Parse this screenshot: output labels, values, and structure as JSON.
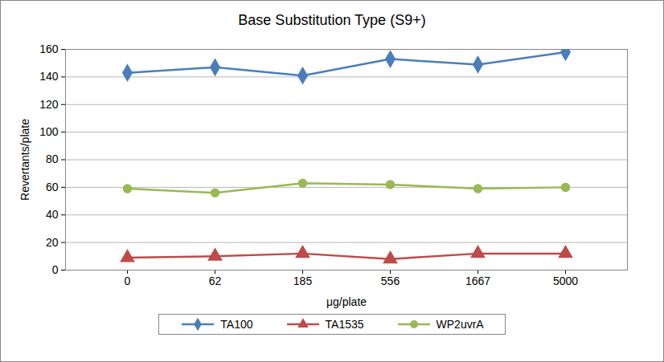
{
  "chart_data": {
    "type": "line",
    "title": "Base Substitution Type (S9+)",
    "x_label": "μg/plate",
    "y_label": "Revertants/plate",
    "categories": [
      "0",
      "62",
      "185",
      "556",
      "1667",
      "5000"
    ],
    "series": [
      {
        "name": "TA100",
        "color": "#4a7ebb",
        "marker": "diamond",
        "values": [
          143,
          147,
          141,
          153,
          149,
          158
        ]
      },
      {
        "name": "TA1535",
        "color": "#be4b48",
        "marker": "triangle",
        "values": [
          9,
          10,
          12,
          8,
          12,
          12
        ]
      },
      {
        "name": "WP2uvrA",
        "color": "#98b954",
        "marker": "circle",
        "values": [
          59,
          56,
          63,
          62,
          59,
          60
        ]
      }
    ],
    "ylim": [
      0,
      160
    ],
    "yticks": [
      0,
      20,
      40,
      60,
      80,
      100,
      120,
      140,
      160
    ],
    "grid": true,
    "legend": "bottom"
  }
}
